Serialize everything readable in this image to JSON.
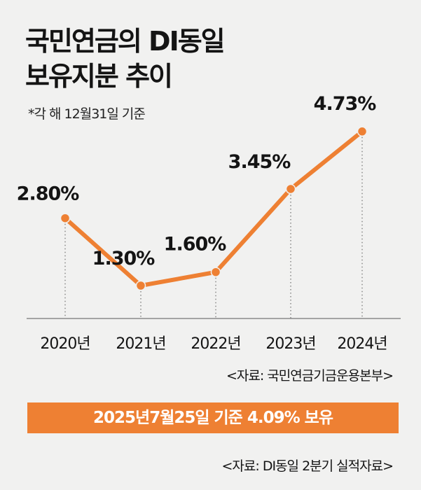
{
  "title_lines": [
    "국민연금의 DI동일",
    "보유지분 추이"
  ],
  "note": "*각 해 12월31일 기준",
  "source_top": "<자료: 국민연금기금운용본부>",
  "banner": "2025년7월25일 기준 4.09% 보유",
  "source_bottom": "<자료: DI동일 2분기 실적자료>",
  "colors": {
    "accent": "#ee8033",
    "background": "#f1f1f0",
    "text": "#141414"
  },
  "chart_data": {
    "type": "line",
    "categories": [
      "2020년",
      "2021년",
      "2022년",
      "2023년",
      "2024년"
    ],
    "series": [
      {
        "values": [
          2.8,
          1.3,
          1.6,
          3.45,
          4.73
        ],
        "labels": [
          "2.80%",
          "1.30%",
          "1.60%",
          "3.45%",
          "4.73%"
        ]
      }
    ],
    "title": "국민연금의 DI동일 보유지분 추이",
    "xlabel": "",
    "ylabel": "",
    "grid": false,
    "legend": "none"
  }
}
